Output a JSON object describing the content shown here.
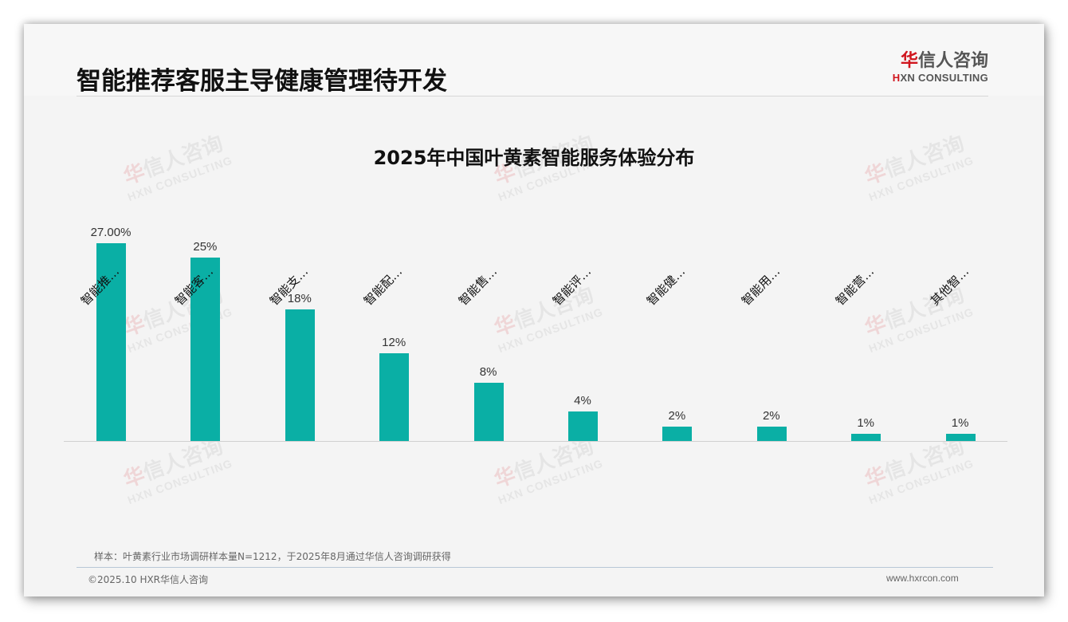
{
  "header": {
    "title": "智能推荐客服主导健康管理待开发",
    "logo": {
      "cn_first": "华",
      "cn_rest": "信人咨询",
      "en_first": "H",
      "en_rest": "XN CONSULTING"
    }
  },
  "watermark": {
    "cn_first": "华",
    "cn_rest": "信人咨询",
    "en": "HXN CONSULTING"
  },
  "chart_data": {
    "type": "bar",
    "title": "2025年中国叶黄素智能服务体验分布",
    "categories": [
      "智能推…",
      "智能客…",
      "智能支…",
      "智能配…",
      "智能售…",
      "智能评…",
      "智能健…",
      "智能用…",
      "智能营…",
      "其他智…"
    ],
    "values": [
      27,
      25,
      18,
      12,
      8,
      4,
      2,
      2,
      1,
      1
    ],
    "value_labels": [
      "27.00%",
      "25%",
      "18%",
      "12%",
      "8%",
      "4%",
      "2%",
      "2%",
      "1%",
      "1%"
    ],
    "xlabel": "",
    "ylabel": "",
    "ylim": [
      0,
      27
    ],
    "grid": false,
    "legend": "none",
    "bar_color": "#0aafa5"
  },
  "footer": {
    "note": "样本：叶黄素行业市场调研样本量N=1212，于2025年8月通过华信人咨询调研获得",
    "copyright": "©2025.10 HXR华信人咨询",
    "website": "www.hxrcon.com"
  }
}
